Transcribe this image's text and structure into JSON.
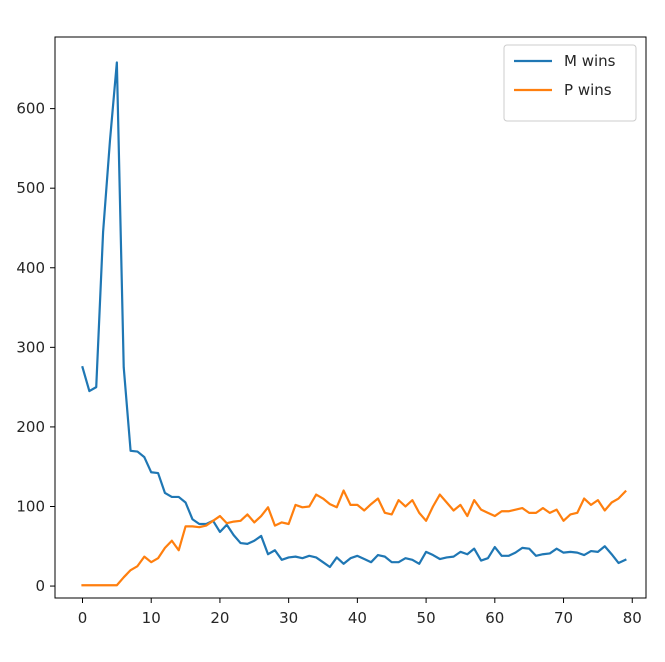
{
  "chart_data": {
    "type": "line",
    "title": "",
    "xlabel": "",
    "ylabel": "",
    "xlim": [
      -4,
      82
    ],
    "ylim": [
      -15,
      690
    ],
    "xticks": [
      0,
      10,
      20,
      30,
      40,
      50,
      60,
      70,
      80
    ],
    "yticks": [
      0,
      100,
      200,
      300,
      400,
      500,
      600
    ],
    "xtick_labels": [
      "0",
      "10",
      "20",
      "30",
      "40",
      "50",
      "60",
      "70",
      "80"
    ],
    "ytick_labels": [
      "0",
      "100",
      "200",
      "300",
      "400",
      "500",
      "600"
    ],
    "grid": false,
    "legend": {
      "position": "top-right"
    },
    "x": [
      0,
      1,
      2,
      3,
      4,
      5,
      6,
      7,
      8,
      9,
      10,
      11,
      12,
      13,
      14,
      15,
      16,
      17,
      18,
      19,
      20,
      21,
      22,
      23,
      24,
      25,
      26,
      27,
      28,
      29,
      30,
      31,
      32,
      33,
      34,
      35,
      36,
      37,
      38,
      39,
      40,
      41,
      42,
      43,
      44,
      45,
      46,
      47,
      48,
      49,
      50,
      51,
      52,
      53,
      54,
      55,
      56,
      57,
      58,
      59,
      60,
      61,
      62,
      63,
      64,
      65,
      66,
      67,
      68,
      69,
      70,
      71,
      72,
      73,
      74,
      75,
      76,
      77,
      78,
      79
    ],
    "series": [
      {
        "name": "M wins",
        "color": "#1f77b4",
        "values": [
          275,
          245,
          250,
          445,
          560,
          658,
          275,
          170,
          169,
          162,
          143,
          142,
          117,
          112,
          112,
          105,
          84,
          78,
          78,
          82,
          68,
          77,
          64,
          54,
          53,
          57,
          63,
          40,
          45,
          33,
          36,
          37,
          35,
          38,
          36,
          30,
          24,
          36,
          28,
          35,
          38,
          34,
          30,
          39,
          37,
          30,
          30,
          35,
          33,
          28,
          43,
          39,
          34,
          36,
          37,
          43,
          40,
          47,
          32,
          35,
          49,
          38,
          38,
          42,
          48,
          47,
          38,
          40,
          41,
          47,
          42,
          43,
          42,
          39,
          44,
          43,
          50,
          40,
          29,
          33
        ]
      },
      {
        "name": "P wins",
        "color": "#ff7f0e",
        "values": [
          1,
          1,
          1,
          1,
          1,
          1,
          11,
          20,
          25,
          37,
          30,
          35,
          48,
          57,
          45,
          75,
          75,
          74,
          76,
          82,
          88,
          79,
          81,
          82,
          90,
          80,
          88,
          99,
          76,
          80,
          78,
          102,
          99,
          100,
          115,
          110,
          103,
          99,
          120,
          102,
          102,
          95,
          103,
          110,
          92,
          90,
          108,
          100,
          108,
          92,
          82,
          100,
          115,
          105,
          95,
          102,
          88,
          108,
          96,
          92,
          88,
          94,
          94,
          96,
          98,
          92,
          92,
          98,
          92,
          96,
          82,
          90,
          92,
          110,
          102,
          108,
          95,
          105,
          110,
          119
        ]
      }
    ]
  },
  "colors": {
    "axes": "#000000",
    "text": "#262626",
    "legend_border": "#cccccc"
  }
}
